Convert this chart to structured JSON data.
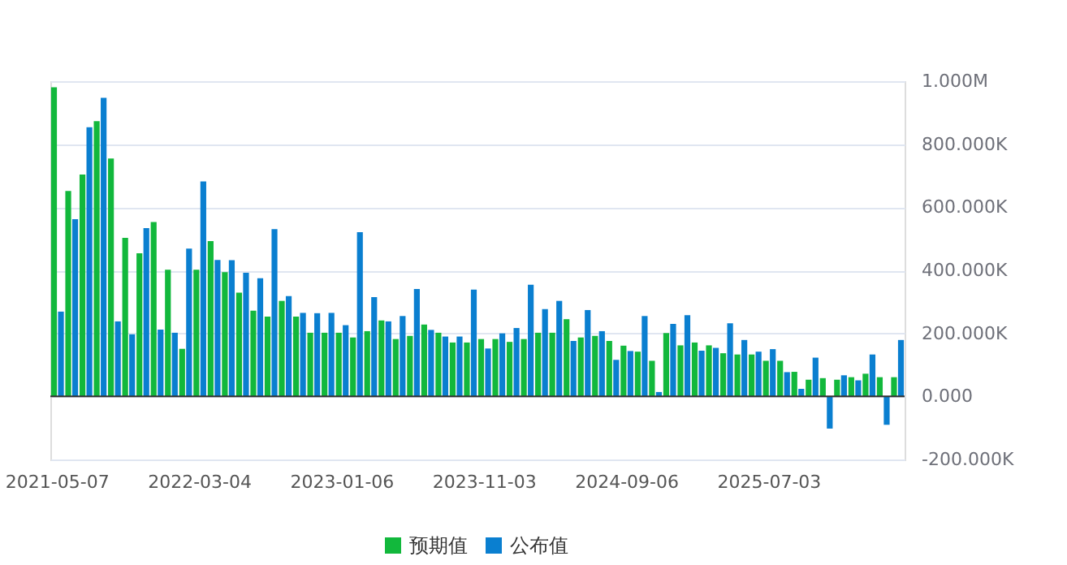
{
  "chart_data": {
    "type": "bar",
    "categories": [
      "2021-05-07",
      null,
      null,
      null,
      null,
      null,
      null,
      null,
      null,
      null,
      "2022-03-04",
      null,
      null,
      null,
      null,
      null,
      null,
      null,
      null,
      null,
      "2023-01-06",
      null,
      null,
      null,
      null,
      null,
      null,
      null,
      null,
      null,
      "2023-11-03",
      null,
      null,
      null,
      null,
      null,
      null,
      null,
      null,
      null,
      "2024-09-06",
      null,
      null,
      null,
      null,
      null,
      null,
      null,
      null,
      null,
      "2025-07-03",
      null,
      null,
      null,
      null,
      null,
      null,
      null,
      null,
      null
    ],
    "series": [
      {
        "name": "预期值",
        "color": "#12b83c",
        "values": [
          981000,
          652000,
          704000,
          873000,
          755000,
          503000,
          454000,
          553000,
          402000,
          151000,
          402000,
          493000,
          394000,
          329000,
          272000,
          253000,
          303000,
          253000,
          202000,
          202000,
          202000,
          187000,
          207000,
          241000,
          182000,
          192000,
          228000,
          202000,
          171000,
          171000,
          182000,
          182000,
          173000,
          182000,
          202000,
          202000,
          245000,
          187000,
          192000,
          176000,
          161000,
          142000,
          113000,
          201000,
          162000,
          171000,
          162000,
          137000,
          133000,
          133000,
          113000,
          113000,
          78000,
          53000,
          58000,
          53000,
          61000,
          72000,
          61000,
          61000
        ]
      },
      {
        "name": "公布值",
        "color": "#0a7fd0",
        "values": [
          269000,
          562000,
          854000,
          947000,
          238000,
          197000,
          534000,
          212000,
          202000,
          469000,
          682000,
          433000,
          432000,
          392000,
          375000,
          531000,
          318000,
          265000,
          264000,
          265000,
          226000,
          521000,
          315000,
          238000,
          255000,
          341000,
          211000,
          190000,
          190000,
          339000,
          152000,
          200000,
          217000,
          354000,
          277000,
          303000,
          176000,
          274000,
          207000,
          116000,
          144000,
          255000,
          14000,
          230000,
          258000,
          145000,
          154000,
          232000,
          179000,
          142000,
          150000,
          77000,
          24000,
          123000,
          -102000,
          67000,
          51000,
          133000,
          -90000,
          179000
        ]
      }
    ],
    "ylim": [
      -200000,
      1000000
    ],
    "yticks": [
      {
        "value": -200000,
        "label": "-200.000K"
      },
      {
        "value": 0,
        "label": "0.000"
      },
      {
        "value": 200000,
        "label": "200.000K"
      },
      {
        "value": 400000,
        "label": "400.000K"
      },
      {
        "value": 600000,
        "label": "600.000K"
      },
      {
        "value": 800000,
        "label": "800.000K"
      },
      {
        "value": 1000000,
        "label": "1.000M"
      }
    ],
    "grid": "y",
    "legend": "bottom"
  }
}
